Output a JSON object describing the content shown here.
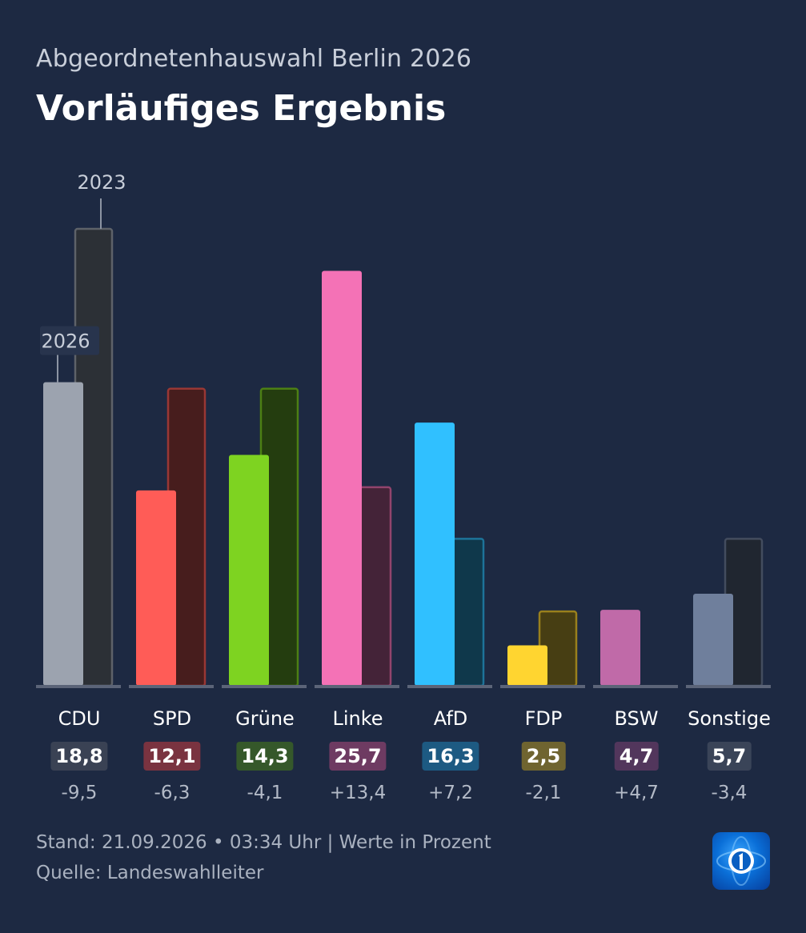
{
  "header": {
    "subtitle": "Abgeordnetenhauswahl Berlin 2026",
    "title": "Vorläufiges Ergebnis"
  },
  "chart_data": {
    "type": "bar",
    "categories": [
      "CDU",
      "SPD",
      "Grüne",
      "Linke",
      "AfD",
      "FDP",
      "BSW",
      "Sonstige"
    ],
    "series": [
      {
        "name": "2026",
        "values": [
          18.8,
          12.1,
          14.3,
          25.7,
          16.3,
          2.5,
          4.7,
          5.7
        ]
      },
      {
        "name": "2023",
        "values": [
          28.3,
          18.4,
          18.4,
          12.3,
          9.1,
          4.6,
          0,
          9.1
        ]
      }
    ],
    "labels": [
      "18,8",
      "12,1",
      "14,3",
      "25,7",
      "16,3",
      "2,5",
      "4,7",
      "5,7"
    ],
    "diffs": [
      "-9,5",
      "-6,3",
      "-4,1",
      "+13,4",
      "+7,2",
      "-2,1",
      "+4,7",
      "-3,4"
    ],
    "colors": [
      "#9ca3af",
      "#ff5c57",
      "#7ed321",
      "#f472b6",
      "#30c0ff",
      "#ffd530",
      "#c06aa8",
      "#6f7f9c"
    ],
    "badge_colors": [
      "#3a4254",
      "#7a3340",
      "#35582a",
      "#6e3b62",
      "#1d5a82",
      "#6f6430",
      "#52365c",
      "#3a4458"
    ],
    "ylim": [
      0,
      30
    ],
    "grid": false
  },
  "footer": {
    "stand": "Stand: 21.09.2026 • 03:34 Uhr | Werte in Prozent",
    "source": "Quelle: Landeswahlleiter"
  },
  "logo": {
    "icon": "tagesschau-logo-icon"
  }
}
